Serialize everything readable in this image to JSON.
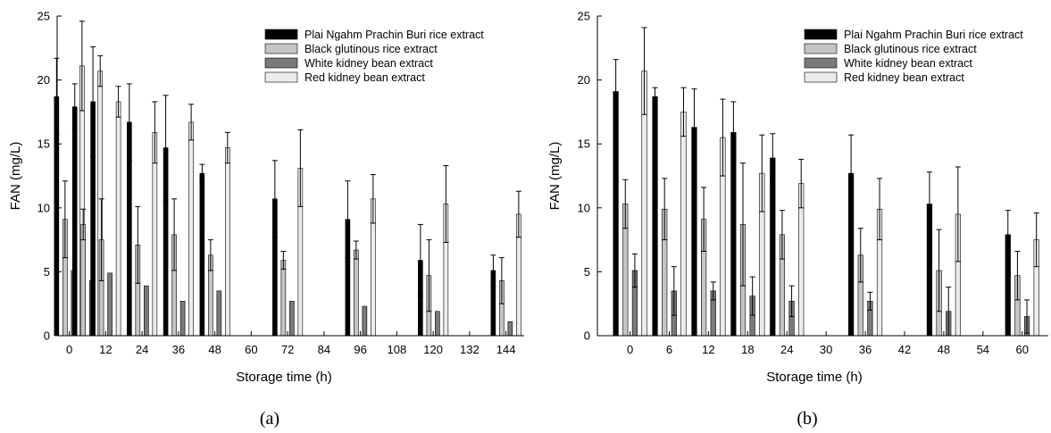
{
  "colors": {
    "series": [
      "#000000",
      "#c4c4c4",
      "#7a7a7a",
      "#ececec"
    ],
    "stroke": "#000000"
  },
  "chart_data": [
    {
      "type": "bar",
      "panel_label": "(a)",
      "xlabel": "Storage time (h)",
      "ylabel": "FAN (mg/L)",
      "ylim": [
        0,
        25
      ],
      "xlim": [
        -4,
        150
      ],
      "yticks": [
        0,
        5,
        10,
        15,
        20,
        25
      ],
      "xticks": [
        0,
        12,
        24,
        36,
        48,
        60,
        72,
        84,
        96,
        108,
        120,
        132,
        144
      ],
      "x": [
        0,
        6,
        12,
        24,
        36,
        48,
        72,
        96,
        120,
        144
      ],
      "legend_position": "top-right",
      "series": [
        {
          "name": "Plai Ngahm Prachin Buri rice extract",
          "values": [
            18.7,
            17.9,
            18.3,
            16.7,
            14.7,
            12.7,
            10.7,
            9.1,
            5.9,
            5.1
          ],
          "errors": [
            3.0,
            1.8,
            4.3,
            3.0,
            4.1,
            0.7,
            3.0,
            3.0,
            2.8,
            1.2
          ]
        },
        {
          "name": "Black glutinous rice extract",
          "values": [
            9.1,
            8.7,
            7.5,
            7.1,
            7.9,
            6.3,
            5.9,
            6.7,
            4.7,
            4.3
          ],
          "errors": [
            3.0,
            1.2,
            3.2,
            3.0,
            2.8,
            1.2,
            0.7,
            0.7,
            2.8,
            1.8
          ]
        },
        {
          "name": "White kidney bean extract",
          "values": [
            5.1,
            4.3,
            4.9,
            3.9,
            2.7,
            3.5,
            2.7,
            2.3,
            1.9,
            1.1
          ]
        },
        {
          "name": "Red kidney bean extract",
          "values": [
            21.1,
            20.7,
            18.3,
            15.9,
            16.7,
            14.7,
            13.1,
            10.7,
            10.3,
            9.5
          ],
          "errors": [
            3.5,
            1.2,
            1.2,
            2.4,
            1.4,
            1.2,
            3.0,
            1.9,
            3.0,
            1.8
          ]
        }
      ]
    },
    {
      "type": "bar",
      "panel_label": "(b)",
      "xlabel": "Storage time (h)",
      "ylabel": "FAN (mg/L)",
      "ylim": [
        0,
        25
      ],
      "xlim": [
        -5,
        64
      ],
      "yticks": [
        0,
        5,
        10,
        15,
        20,
        25
      ],
      "xticks": [
        0,
        6,
        12,
        18,
        24,
        30,
        36,
        42,
        48,
        54,
        60
      ],
      "x": [
        0,
        6,
        12,
        18,
        24,
        36,
        48,
        60
      ],
      "legend_position": "top-right",
      "series": [
        {
          "name": "Plai Ngahm Prachin Buri rice extract",
          "values": [
            19.1,
            18.7,
            16.3,
            15.9,
            13.9,
            12.7,
            10.3,
            7.9
          ],
          "errors": [
            2.5,
            0.7,
            3.0,
            2.4,
            1.9,
            3.0,
            2.5,
            1.9
          ]
        },
        {
          "name": "Black glutinous rice extract",
          "values": [
            10.3,
            9.9,
            9.1,
            8.7,
            7.9,
            6.3,
            5.1,
            4.7
          ],
          "errors": [
            1.9,
            2.4,
            2.5,
            4.8,
            1.9,
            2.1,
            3.2,
            1.9
          ]
        },
        {
          "name": "White kidney bean extract",
          "values": [
            5.1,
            3.5,
            3.5,
            3.1,
            2.7,
            2.7,
            1.9,
            1.5
          ],
          "errors": [
            1.3,
            1.9,
            0.7,
            1.5,
            1.2,
            0.7,
            1.9,
            1.3
          ]
        },
        {
          "name": "Red kidney bean extract",
          "values": [
            20.7,
            17.5,
            15.5,
            12.7,
            11.9,
            9.9,
            9.5,
            7.5
          ],
          "errors": [
            3.4,
            1.9,
            3.0,
            3.0,
            1.9,
            2.4,
            3.7,
            2.1
          ]
        }
      ]
    }
  ]
}
